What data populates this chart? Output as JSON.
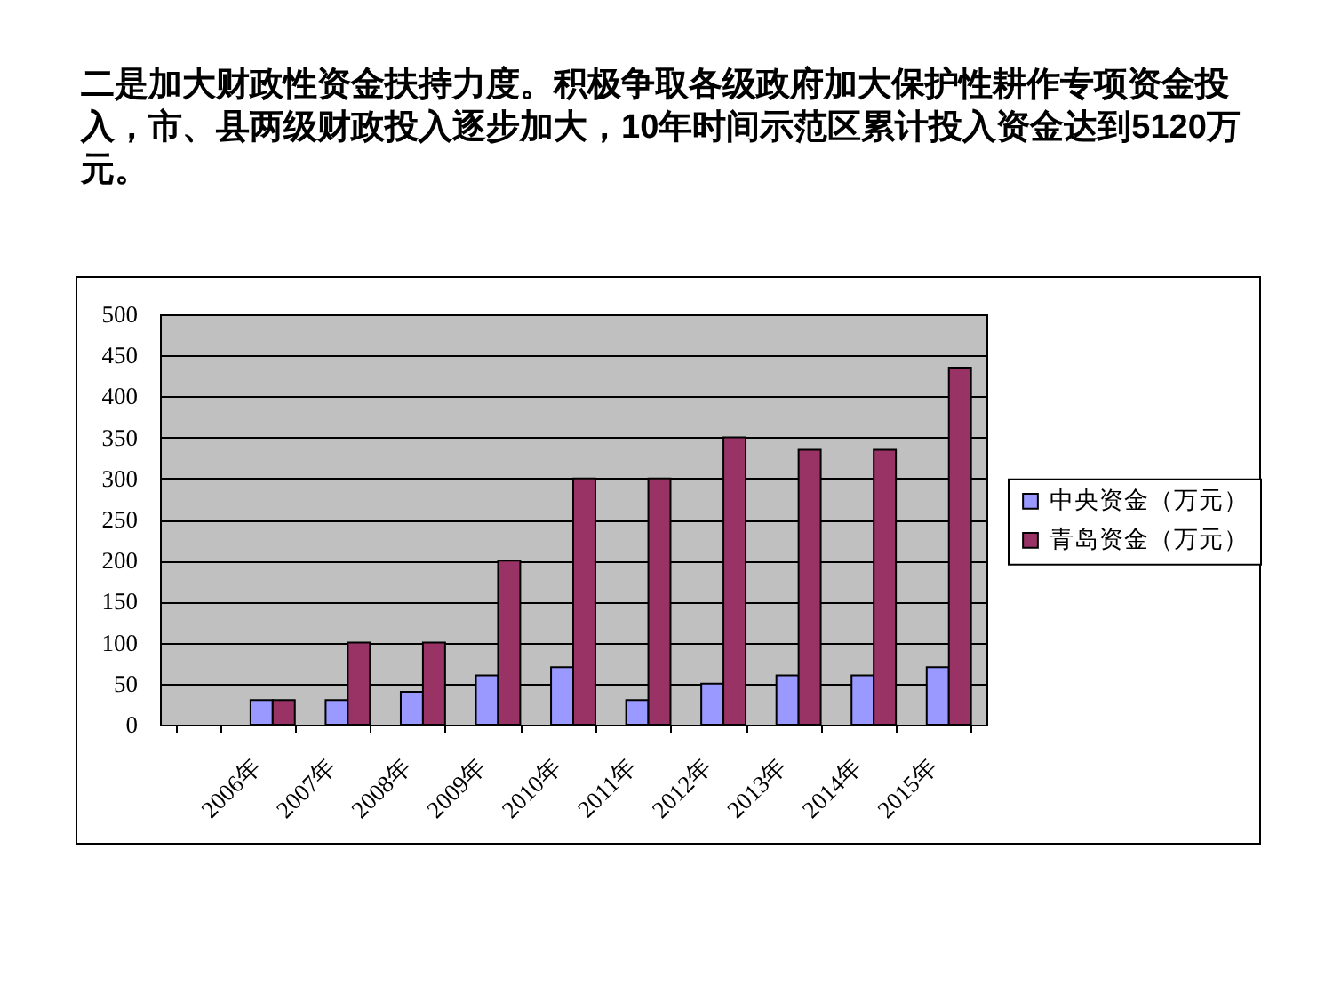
{
  "chart_data": {
    "type": "bar",
    "title": "二是加大财政性资金扶持力度。积极争取各级政府加大保护性耕作专项资金投入，市、县两级财政投入逐步加大，10年时间示范区累计投入资金达到5120万元。",
    "categories": [
      null,
      "2006年",
      "2007年",
      "2008年",
      "2009年",
      "2010年",
      "2011年",
      "2012年",
      "2013年",
      "2014年",
      "2015年"
    ],
    "series": [
      {
        "name": "中央资金（万元）",
        "color": "#9999ff",
        "values": [
          null,
          30,
          30,
          40,
          60,
          70,
          30,
          50,
          60,
          60,
          70
        ]
      },
      {
        "name": "青岛资金（万元）",
        "color": "#993366",
        "values": [
          null,
          30,
          100,
          100,
          200,
          300,
          300,
          350,
          335,
          335,
          435
        ]
      }
    ],
    "ylim": [
      0,
      500
    ],
    "yticks": [
      0,
      50,
      100,
      150,
      200,
      250,
      300,
      350,
      400,
      450,
      500
    ],
    "grid": "y",
    "legend": "right"
  }
}
